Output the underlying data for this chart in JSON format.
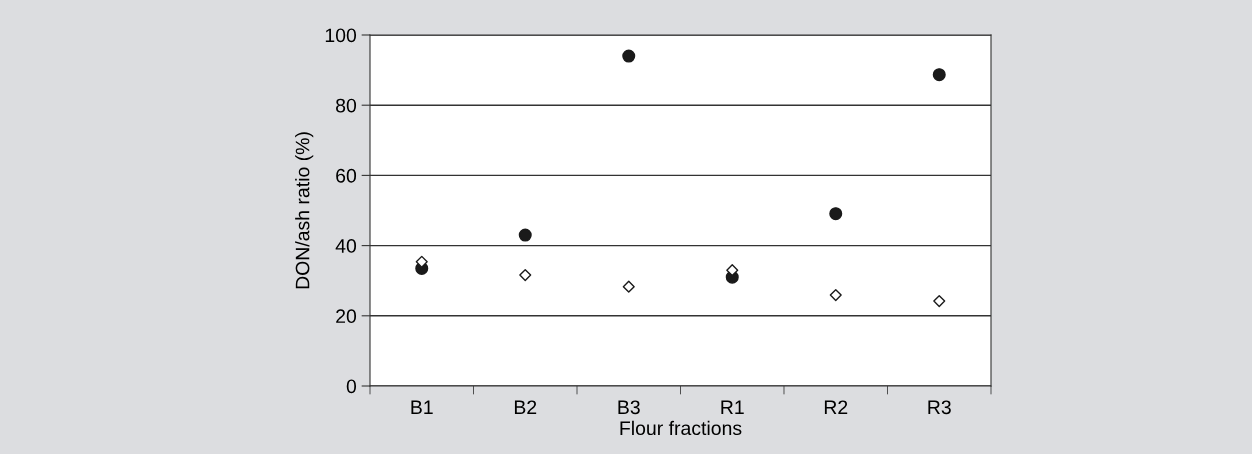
{
  "chart_data": {
    "type": "scatter",
    "xlabel": "Flour fractions",
    "ylabel": "DON/ash ratio (%)",
    "categories": [
      "B1",
      "B2",
      "B3",
      "R1",
      "R2",
      "R3"
    ],
    "series": [
      {
        "color": "#1a1a1a",
        "marker": "circle",
        "values": [
          33.5,
          43.0,
          94.0,
          31.0,
          49.1,
          88.7
        ]
      },
      {
        "color": "#ffffff",
        "marker": "diamond",
        "values": [
          35.4,
          31.6,
          28.3,
          33.0,
          25.9,
          24.2
        ]
      }
    ],
    "ylim": [
      0,
      100
    ],
    "yticks": [
      0,
      20,
      40,
      60,
      80,
      100
    ],
    "grid": "y",
    "legend": false
  }
}
